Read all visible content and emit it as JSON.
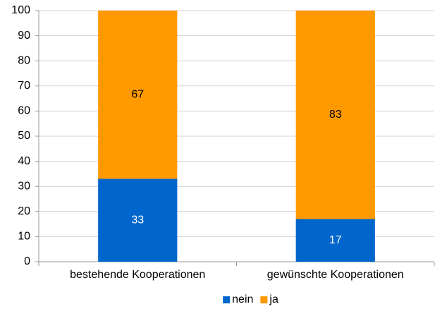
{
  "chart_data": {
    "type": "stacked_bar",
    "categories": [
      "bestehende Kooperationen",
      "gewünschte Kooperationen"
    ],
    "series": [
      {
        "name": "nein",
        "color": "#0066cc",
        "label_color": "#ffffff",
        "values": [
          33,
          17
        ]
      },
      {
        "name": "ja",
        "color": "#ff9900",
        "label_color": "#000000",
        "values": [
          67,
          83
        ]
      }
    ],
    "ylim": [
      0,
      100
    ],
    "yticks": [
      0,
      10,
      20,
      30,
      40,
      50,
      60,
      70,
      80,
      90,
      100
    ],
    "grid": true,
    "legend": "bottom"
  }
}
